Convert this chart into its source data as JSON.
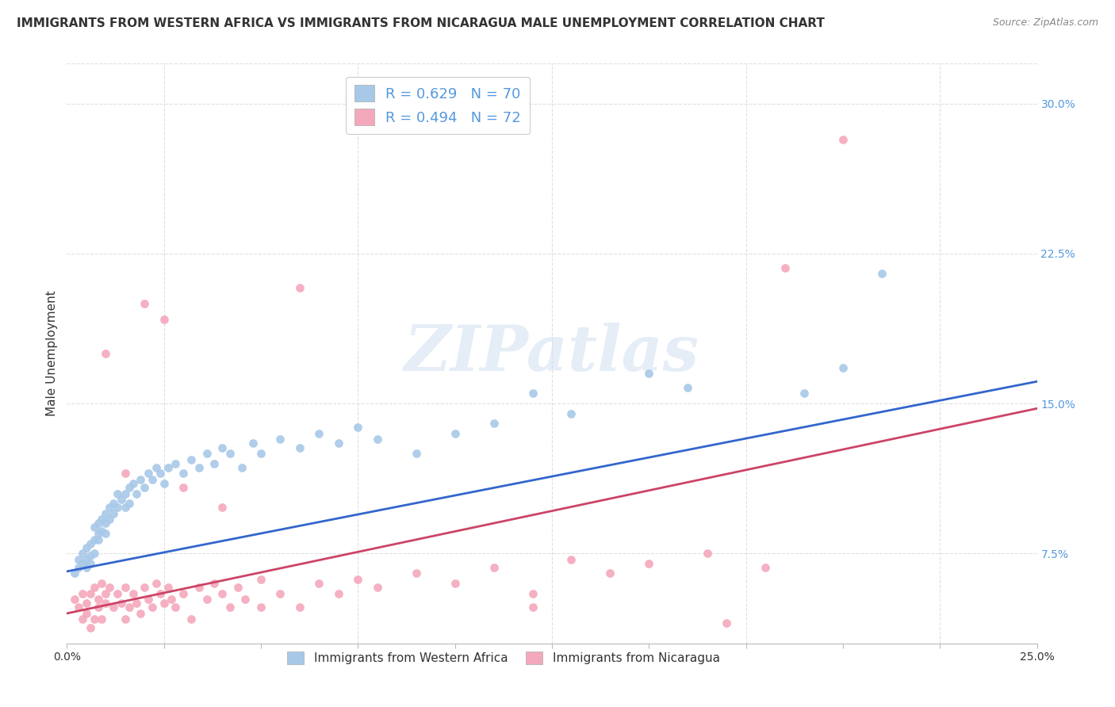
{
  "title": "IMMIGRANTS FROM WESTERN AFRICA VS IMMIGRANTS FROM NICARAGUA MALE UNEMPLOYMENT CORRELATION CHART",
  "source": "Source: ZipAtlas.com",
  "ylabel": "Male Unemployment",
  "xlim": [
    0.0,
    0.25
  ],
  "ylim": [
    0.03,
    0.32
  ],
  "xticks": [
    0.0,
    0.05,
    0.1,
    0.15,
    0.2,
    0.25
  ],
  "xtick_labels": [
    "0.0%",
    "",
    "",
    "",
    "",
    "25.0%"
  ],
  "ytick_labels_right": [
    "30.0%",
    "22.5%",
    "15.0%",
    "7.5%"
  ],
  "yticks_right": [
    0.3,
    0.225,
    0.15,
    0.075
  ],
  "series1_color": "#a8c8e8",
  "series2_color": "#f4a8bc",
  "line1_color": "#3366cc",
  "line2_color": "#cc4466",
  "R1": 0.629,
  "N1": 70,
  "R2": 0.494,
  "N2": 72,
  "label1": "Immigrants from Western Africa",
  "label2": "Immigrants from Nicaragua",
  "watermark": "ZIPatlas",
  "background_color": "#ffffff",
  "grid_color": "#e0e0e0",
  "title_fontsize": 11,
  "axis_label_fontsize": 11,
  "tick_fontsize": 10,
  "line1_intercept": 0.066,
  "line1_slope": 0.38,
  "line2_intercept": 0.045,
  "line2_slope": 0.41,
  "series1_x": [
    0.002,
    0.003,
    0.003,
    0.004,
    0.004,
    0.005,
    0.005,
    0.005,
    0.006,
    0.006,
    0.006,
    0.007,
    0.007,
    0.007,
    0.008,
    0.008,
    0.008,
    0.009,
    0.009,
    0.01,
    0.01,
    0.01,
    0.011,
    0.011,
    0.012,
    0.012,
    0.013,
    0.013,
    0.014,
    0.015,
    0.015,
    0.016,
    0.016,
    0.017,
    0.018,
    0.019,
    0.02,
    0.021,
    0.022,
    0.023,
    0.024,
    0.025,
    0.026,
    0.028,
    0.03,
    0.032,
    0.034,
    0.036,
    0.038,
    0.04,
    0.042,
    0.045,
    0.048,
    0.05,
    0.055,
    0.06,
    0.065,
    0.07,
    0.075,
    0.08,
    0.09,
    0.1,
    0.11,
    0.12,
    0.13,
    0.15,
    0.16,
    0.19,
    0.2,
    0.21
  ],
  "series1_y": [
    0.065,
    0.068,
    0.072,
    0.07,
    0.075,
    0.068,
    0.072,
    0.078,
    0.07,
    0.074,
    0.08,
    0.075,
    0.082,
    0.088,
    0.082,
    0.085,
    0.09,
    0.086,
    0.092,
    0.085,
    0.09,
    0.095,
    0.092,
    0.098,
    0.095,
    0.1,
    0.098,
    0.105,
    0.102,
    0.098,
    0.105,
    0.1,
    0.108,
    0.11,
    0.105,
    0.112,
    0.108,
    0.115,
    0.112,
    0.118,
    0.115,
    0.11,
    0.118,
    0.12,
    0.115,
    0.122,
    0.118,
    0.125,
    0.12,
    0.128,
    0.125,
    0.118,
    0.13,
    0.125,
    0.132,
    0.128,
    0.135,
    0.13,
    0.138,
    0.132,
    0.125,
    0.135,
    0.14,
    0.155,
    0.145,
    0.165,
    0.158,
    0.155,
    0.168,
    0.215
  ],
  "series2_x": [
    0.002,
    0.003,
    0.004,
    0.004,
    0.005,
    0.005,
    0.006,
    0.006,
    0.007,
    0.007,
    0.008,
    0.008,
    0.009,
    0.009,
    0.01,
    0.01,
    0.011,
    0.012,
    0.013,
    0.014,
    0.015,
    0.015,
    0.016,
    0.017,
    0.018,
    0.019,
    0.02,
    0.021,
    0.022,
    0.023,
    0.024,
    0.025,
    0.026,
    0.027,
    0.028,
    0.03,
    0.032,
    0.034,
    0.036,
    0.038,
    0.04,
    0.042,
    0.044,
    0.046,
    0.05,
    0.055,
    0.06,
    0.065,
    0.07,
    0.075,
    0.08,
    0.09,
    0.1,
    0.11,
    0.12,
    0.13,
    0.14,
    0.15,
    0.165,
    0.18,
    0.01,
    0.015,
    0.02,
    0.025,
    0.03,
    0.04,
    0.05,
    0.06,
    0.12,
    0.17,
    0.185,
    0.2
  ],
  "series2_y": [
    0.052,
    0.048,
    0.042,
    0.055,
    0.045,
    0.05,
    0.038,
    0.055,
    0.042,
    0.058,
    0.048,
    0.052,
    0.042,
    0.06,
    0.05,
    0.055,
    0.058,
    0.048,
    0.055,
    0.05,
    0.042,
    0.058,
    0.048,
    0.055,
    0.05,
    0.045,
    0.058,
    0.052,
    0.048,
    0.06,
    0.055,
    0.05,
    0.058,
    0.052,
    0.048,
    0.055,
    0.042,
    0.058,
    0.052,
    0.06,
    0.055,
    0.048,
    0.058,
    0.052,
    0.062,
    0.055,
    0.048,
    0.06,
    0.055,
    0.062,
    0.058,
    0.065,
    0.06,
    0.068,
    0.055,
    0.072,
    0.065,
    0.07,
    0.075,
    0.068,
    0.175,
    0.115,
    0.2,
    0.192,
    0.108,
    0.098,
    0.048,
    0.208,
    0.048,
    0.04,
    0.218,
    0.282
  ]
}
